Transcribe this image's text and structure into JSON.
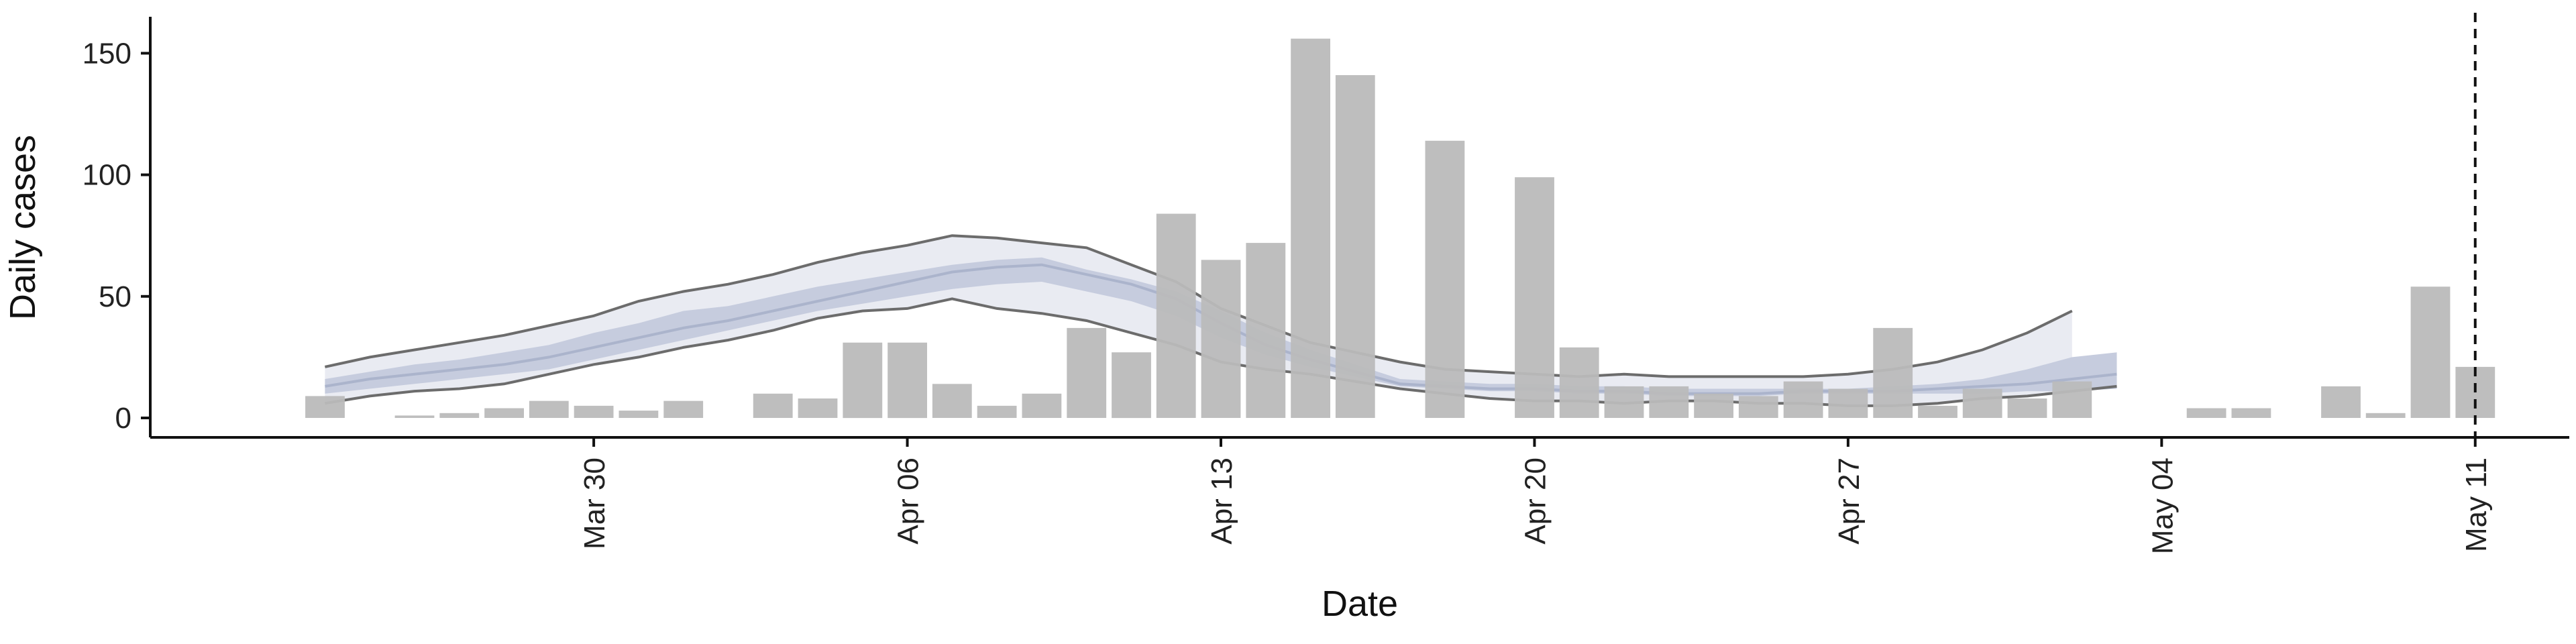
{
  "chart_data": {
    "type": "bar",
    "title": "",
    "xlabel": "Date",
    "ylabel": "Daily cases",
    "ylim": [
      -8,
      165
    ],
    "yticks": [
      0,
      50,
      100,
      150
    ],
    "xtick_labels": [
      "Mar 30",
      "Apr 06",
      "Apr 13",
      "Apr 20",
      "Apr 27",
      "May 04",
      "May 11"
    ],
    "xtick_days": [
      6,
      13,
      20,
      27,
      34,
      41,
      48
    ],
    "x_range_days": [
      -3.9,
      50.1
    ],
    "vline_day": 48,
    "bars": {
      "days": [
        0,
        1,
        2,
        3,
        4,
        5,
        6,
        7,
        8,
        9,
        10,
        11,
        12,
        13,
        14,
        15,
        16,
        17,
        18,
        19,
        20,
        21,
        22,
        23,
        24,
        25,
        26,
        27,
        28,
        29,
        30,
        31,
        32,
        33,
        34,
        35,
        36,
        37,
        38,
        39,
        40,
        41,
        42,
        43,
        44,
        45,
        46,
        47,
        48
      ],
      "values": [
        9,
        0,
        1,
        2,
        4,
        7,
        5,
        3,
        7,
        0,
        10,
        8,
        31,
        31,
        14,
        5,
        10,
        37,
        27,
        84,
        65,
        72,
        156,
        141,
        0,
        114,
        0,
        99,
        29,
        13,
        13,
        10,
        9,
        15,
        12,
        37,
        5,
        12,
        8,
        15,
        0,
        0,
        4,
        4,
        0,
        13,
        2,
        54,
        21
      ]
    },
    "estimate": {
      "days": [
        0,
        1,
        2,
        3,
        4,
        5,
        6,
        7,
        8,
        9,
        10,
        11,
        12,
        13,
        14,
        15,
        16,
        17,
        18,
        19,
        20,
        21,
        22,
        23,
        24,
        25,
        26,
        27,
        28,
        29,
        30,
        31,
        32,
        33,
        34,
        35,
        36,
        37,
        38,
        39,
        40,
        41,
        42,
        43,
        44,
        45,
        46,
        47,
        48
      ],
      "median": [
        13,
        16,
        18,
        20,
        22,
        25,
        29,
        33,
        37,
        40,
        44,
        48,
        52,
        56,
        60,
        62,
        63,
        59,
        55,
        49,
        39,
        30,
        24,
        19,
        14,
        13,
        12,
        12,
        11,
        11,
        10,
        10,
        10,
        11,
        11,
        11,
        12,
        13,
        14,
        16,
        18,
        null,
        null,
        null,
        null,
        null,
        null,
        null,
        null
      ],
      "band_inner_lower": [
        10,
        12,
        14,
        16,
        18,
        20,
        24,
        28,
        32,
        36,
        40,
        44,
        47,
        50,
        53,
        55,
        56,
        52,
        48,
        42,
        33,
        26,
        21,
        17,
        13,
        12,
        11,
        11,
        10,
        10,
        9,
        9,
        9,
        10,
        10,
        10,
        10,
        10,
        11,
        11,
        12,
        null,
        null,
        null,
        null,
        null,
        null,
        null,
        null
      ],
      "band_inner_upper": [
        16,
        19,
        22,
        24,
        27,
        30,
        35,
        39,
        44,
        46,
        50,
        54,
        57,
        60,
        63,
        65,
        66,
        61,
        57,
        52,
        44,
        35,
        28,
        22,
        16,
        15,
        14,
        14,
        13,
        13,
        12,
        12,
        12,
        12,
        12,
        13,
        14,
        16,
        20,
        25,
        27,
        null,
        null,
        null,
        null,
        null,
        null,
        null,
        null
      ],
      "band_outer_lower": [
        6,
        9,
        11,
        12,
        14,
        18,
        22,
        25,
        29,
        32,
        36,
        41,
        44,
        45,
        49,
        45,
        43,
        40,
        35,
        30,
        23,
        20,
        18,
        15,
        12,
        10,
        8,
        7,
        7,
        6,
        7,
        7,
        6,
        6,
        5,
        5,
        6,
        8,
        9,
        11,
        13,
        null,
        null,
        null,
        null,
        null,
        null,
        null,
        null
      ],
      "band_outer_upper": [
        21,
        25,
        28,
        31,
        34,
        38,
        42,
        48,
        52,
        55,
        59,
        64,
        68,
        71,
        75,
        74,
        72,
        70,
        63,
        56,
        45,
        38,
        31,
        27,
        23,
        20,
        19,
        18,
        17,
        18,
        17,
        17,
        17,
        17,
        18,
        20,
        23,
        28,
        35,
        44,
        null,
        null,
        null,
        null,
        null,
        null,
        null,
        null,
        null
      ]
    },
    "colors": {
      "bar": "#bbbbbb",
      "outer_band": "#e9ebf2",
      "inner_band": "#c6ccde",
      "median": "#9aa3c0",
      "outer_line": "#6c6c6c",
      "vline": "#111111",
      "axis": "#111111"
    }
  }
}
